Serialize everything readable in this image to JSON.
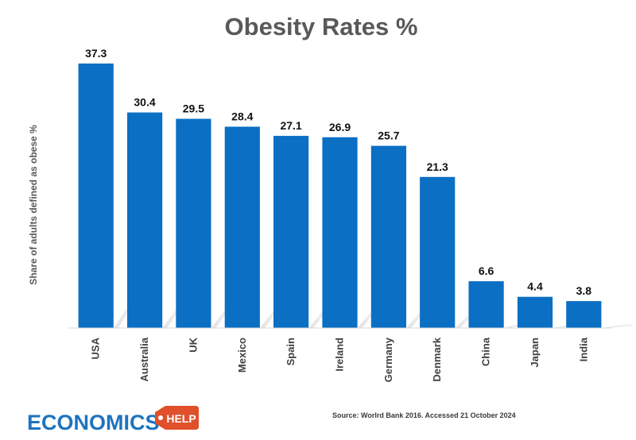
{
  "chart_data": {
    "type": "bar",
    "title": "Obesity Rates %",
    "ylabel": "Share of adults defined as obese %",
    "xlabel": "",
    "categories": [
      "USA",
      "Australia",
      "UK",
      "Mexico",
      "Spain",
      "Ireland",
      "Germany",
      "Denmark",
      "China",
      "Japan",
      "India"
    ],
    "values": [
      37.3,
      30.4,
      29.5,
      28.4,
      27.1,
      26.9,
      25.7,
      21.3,
      6.6,
      4.4,
      3.8
    ],
    "ylim": [
      0,
      37.3
    ],
    "grid": false,
    "bar_color": "#0b6fc4",
    "label_color": "#111111"
  },
  "source": "Source: Worlrd Bank 2016. Accessed 21 October 2024",
  "logo": {
    "word": "ECONOMICS",
    "tag": "HELP",
    "word_color": "#1e73be",
    "tag_color": "#e0502b"
  }
}
